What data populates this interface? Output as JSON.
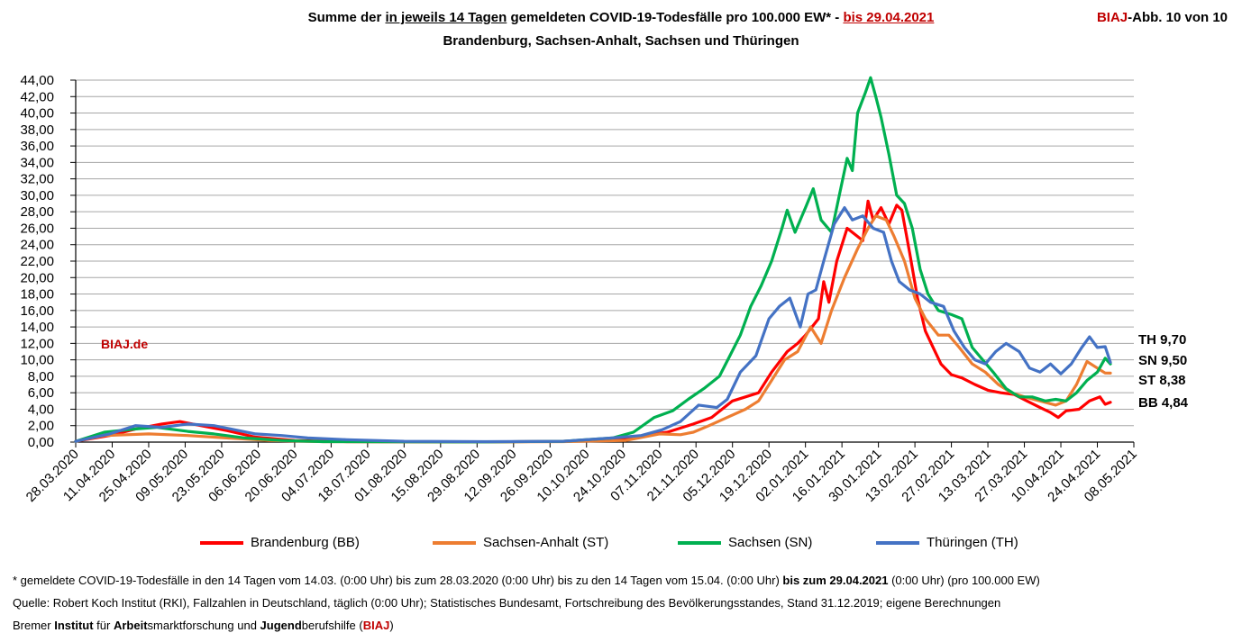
{
  "title": {
    "part1": "Summe der ",
    "part2": "in jeweils 14 Tagen",
    "part3": " gemeldeten COVID-19-Todesfälle pro 100.000 EW* - ",
    "part4": "bis 29.04.2021",
    "line2": "Brandenburg, Sachsen-Anhalt, Sachsen und Thüringen"
  },
  "figure_number": {
    "brand": "BIAJ",
    "rest": "-Abb. 10 von 10"
  },
  "brand_label": "BIAJ.de",
  "footnotes": {
    "line1_a": "* gemeldete COVID-19-Todesfälle in den 14 Tagen vom 14.03. (0:00 Uhr) bis zum 28.03.2020 (0:00 Uhr) bis zu den 14 Tagen vom 15.04. (0:00 Uhr) ",
    "line1_b": "bis zum 29.04.2021",
    "line1_c": " (0:00 Uhr) (pro 100.000 EW)",
    "line2": "Quelle: Robert Koch Institut (RKI), Fallzahlen in Deutschland, täglich (0:00 Uhr); Statistisches Bundesamt, Fortschreibung des Bevölkerungsstandes, Stand 31.12.2019; eigene Berechnungen",
    "line3_a": "Bremer ",
    "line3_b": "Institut",
    "line3_c": " für ",
    "line3_d": "Arbeit",
    "line3_e": "smarktforschung und ",
    "line3_f": "Jugend",
    "line3_g": "berufshilfe (",
    "line3_h": "BIAJ",
    "line3_i": ")"
  },
  "chart_data": {
    "type": "line",
    "x_type": "date",
    "x_ticks": [
      "28.03.2020",
      "11.04.2020",
      "25.04.2020",
      "09.05.2020",
      "23.05.2020",
      "06.06.2020",
      "20.06.2020",
      "04.07.2020",
      "18.07.2020",
      "01.08.2020",
      "15.08.2020",
      "29.08.2020",
      "12.09.2020",
      "26.09.2020",
      "10.10.2020",
      "24.10.2020",
      "07.11.2020",
      "21.11.2020",
      "05.12.2020",
      "19.12.2020",
      "02.01.2021",
      "16.01.2021",
      "30.01.2021",
      "13.02.2021",
      "27.02.2021",
      "13.03.2021",
      "27.03.2021",
      "10.04.2021",
      "24.04.2021",
      "08.05.2021"
    ],
    "xlim": [
      "28.03.2020",
      "08.05.2021"
    ],
    "ylim": [
      0,
      44
    ],
    "y_step": 2,
    "y_ticks": [
      "0,00",
      "2,00",
      "4,00",
      "6,00",
      "8,00",
      "10,00",
      "12,00",
      "14,00",
      "16,00",
      "18,00",
      "20,00",
      "22,00",
      "24,00",
      "26,00",
      "28,00",
      "30,00",
      "32,00",
      "34,00",
      "36,00",
      "38,00",
      "40,00",
      "42,00",
      "44,00"
    ],
    "grid": true,
    "legend_position": "bottom",
    "series": [
      {
        "name": "Brandenburg (BB)",
        "color": "#ff0000",
        "end_label": "BB 4,84",
        "points": [
          [
            "28.03.2020",
            0.1
          ],
          [
            "10.04.2020",
            0.8
          ],
          [
            "20.04.2020",
            1.6
          ],
          [
            "30.04.2020",
            2.2
          ],
          [
            "07.05.2020",
            2.5
          ],
          [
            "15.05.2020",
            2.0
          ],
          [
            "25.05.2020",
            1.4
          ],
          [
            "05.06.2020",
            0.6
          ],
          [
            "20.06.2020",
            0.2
          ],
          [
            "10.07.2020",
            0.05
          ],
          [
            "01.09.2020",
            0.02
          ],
          [
            "01.10.2020",
            0.1
          ],
          [
            "20.10.2020",
            0.3
          ],
          [
            "01.11.2020",
            0.8
          ],
          [
            "10.11.2020",
            1.2
          ],
          [
            "20.11.2020",
            2.2
          ],
          [
            "27.11.2020",
            3.0
          ],
          [
            "05.12.2020",
            5.0
          ],
          [
            "10.12.2020",
            5.5
          ],
          [
            "15.12.2020",
            6.0
          ],
          [
            "20.12.2020",
            8.5
          ],
          [
            "26.12.2020",
            11.0
          ],
          [
            "30.12.2020",
            12.0
          ],
          [
            "02.01.2021",
            13.0
          ],
          [
            "07.01.2021",
            15.0
          ],
          [
            "09.01.2021",
            19.5
          ],
          [
            "11.01.2021",
            17.0
          ],
          [
            "14.01.2021",
            22.0
          ],
          [
            "18.01.2021",
            26.0
          ],
          [
            "22.01.2021",
            25.0
          ],
          [
            "24.01.2021",
            24.5
          ],
          [
            "26.01.2021",
            29.3
          ],
          [
            "28.01.2021",
            27.0
          ],
          [
            "31.01.2021",
            28.5
          ],
          [
            "03.02.2021",
            26.5
          ],
          [
            "06.02.2021",
            28.8
          ],
          [
            "08.02.2021",
            28.2
          ],
          [
            "11.02.2021",
            23.0
          ],
          [
            "14.02.2021",
            17.5
          ],
          [
            "17.02.2021",
            13.5
          ],
          [
            "20.02.2021",
            11.5
          ],
          [
            "23.02.2021",
            9.5
          ],
          [
            "27.02.2021",
            8.2
          ],
          [
            "03.03.2021",
            7.8
          ],
          [
            "08.03.2021",
            7.0
          ],
          [
            "13.03.2021",
            6.3
          ],
          [
            "18.03.2021",
            6.0
          ],
          [
            "23.03.2021",
            5.8
          ],
          [
            "28.03.2021",
            5.0
          ],
          [
            "02.04.2021",
            4.2
          ],
          [
            "06.04.2021",
            3.6
          ],
          [
            "09.04.2021",
            3.0
          ],
          [
            "12.04.2021",
            3.8
          ],
          [
            "17.04.2021",
            4.0
          ],
          [
            "21.04.2021",
            5.0
          ],
          [
            "25.04.2021",
            5.5
          ],
          [
            "27.04.2021",
            4.6
          ],
          [
            "29.04.2021",
            4.84
          ]
        ]
      },
      {
        "name": "Sachsen-Anhalt (ST)",
        "color": "#ed7d31",
        "end_label": "ST 8,38",
        "points": [
          [
            "28.03.2020",
            0.1
          ],
          [
            "08.04.2020",
            0.8
          ],
          [
            "25.04.2020",
            1.0
          ],
          [
            "10.05.2020",
            0.8
          ],
          [
            "25.05.2020",
            0.5
          ],
          [
            "10.06.2020",
            0.2
          ],
          [
            "01.07.2020",
            0.05
          ],
          [
            "01.09.2020",
            0.02
          ],
          [
            "01.10.2020",
            0.05
          ],
          [
            "25.10.2020",
            0.2
          ],
          [
            "07.11.2020",
            1.0
          ],
          [
            "15.11.2020",
            0.9
          ],
          [
            "20.11.2020",
            1.2
          ],
          [
            "26.11.2020",
            2.0
          ],
          [
            "03.12.2020",
            3.0
          ],
          [
            "10.12.2020",
            4.0
          ],
          [
            "15.12.2020",
            5.0
          ],
          [
            "20.12.2020",
            7.5
          ],
          [
            "25.12.2020",
            10.0
          ],
          [
            "30.12.2020",
            11.0
          ],
          [
            "04.01.2021",
            14.0
          ],
          [
            "08.01.2021",
            12.0
          ],
          [
            "12.01.2021",
            16.0
          ],
          [
            "17.01.2021",
            20.0
          ],
          [
            "22.01.2021",
            23.5
          ],
          [
            "26.01.2021",
            26.0
          ],
          [
            "29.01.2021",
            27.5
          ],
          [
            "02.02.2021",
            27.0
          ],
          [
            "05.02.2021",
            25.0
          ],
          [
            "09.02.2021",
            22.0
          ],
          [
            "13.02.2021",
            17.5
          ],
          [
            "17.02.2021",
            15.0
          ],
          [
            "22.02.2021",
            13.0
          ],
          [
            "26.02.2021",
            13.0
          ],
          [
            "02.03.2021",
            11.5
          ],
          [
            "07.03.2021",
            9.5
          ],
          [
            "12.03.2021",
            8.5
          ],
          [
            "17.03.2021",
            7.0
          ],
          [
            "22.03.2021",
            6.0
          ],
          [
            "27.03.2021",
            5.5
          ],
          [
            "02.04.2021",
            5.0
          ],
          [
            "08.04.2021",
            4.5
          ],
          [
            "12.04.2021",
            5.0
          ],
          [
            "16.04.2021",
            7.0
          ],
          [
            "20.04.2021",
            9.8
          ],
          [
            "24.04.2021",
            9.0
          ],
          [
            "27.04.2021",
            8.4
          ],
          [
            "29.04.2021",
            8.38
          ]
        ]
      },
      {
        "name": "Sachsen (SN)",
        "color": "#00b050",
        "end_label": "SN 9,50",
        "points": [
          [
            "28.03.2020",
            0.1
          ],
          [
            "08.04.2020",
            1.2
          ],
          [
            "20.04.2020",
            1.6
          ],
          [
            "28.04.2020",
            1.8
          ],
          [
            "10.05.2020",
            1.3
          ],
          [
            "20.05.2020",
            1.0
          ],
          [
            "01.06.2020",
            0.5
          ],
          [
            "15.06.2020",
            0.2
          ],
          [
            "01.07.2020",
            0.05
          ],
          [
            "01.09.2020",
            0.02
          ],
          [
            "01.10.2020",
            0.1
          ],
          [
            "20.10.2020",
            0.5
          ],
          [
            "28.10.2020",
            1.2
          ],
          [
            "05.11.2020",
            3.0
          ],
          [
            "12.11.2020",
            3.8
          ],
          [
            "18.11.2020",
            5.2
          ],
          [
            "24.11.2020",
            6.5
          ],
          [
            "30.11.2020",
            8.0
          ],
          [
            "04.12.2020",
            10.5
          ],
          [
            "08.12.2020",
            13.0
          ],
          [
            "12.12.2020",
            16.5
          ],
          [
            "16.12.2020",
            19.0
          ],
          [
            "20.12.2020",
            22.0
          ],
          [
            "24.12.2020",
            26.0
          ],
          [
            "26.12.2020",
            28.2
          ],
          [
            "29.12.2020",
            25.5
          ],
          [
            "02.01.2021",
            28.5
          ],
          [
            "05.01.2021",
            30.8
          ],
          [
            "08.01.2021",
            27.0
          ],
          [
            "12.01.2021",
            25.5
          ],
          [
            "15.01.2021",
            30.0
          ],
          [
            "18.01.2021",
            34.5
          ],
          [
            "20.01.2021",
            33.0
          ],
          [
            "22.01.2021",
            40.0
          ],
          [
            "25.01.2021",
            42.5
          ],
          [
            "27.01.2021",
            44.3
          ],
          [
            "29.01.2021",
            42.0
          ],
          [
            "31.01.2021",
            39.5
          ],
          [
            "03.02.2021",
            35.0
          ],
          [
            "06.02.2021",
            30.0
          ],
          [
            "09.02.2021",
            29.0
          ],
          [
            "12.02.2021",
            26.0
          ],
          [
            "15.02.2021",
            21.0
          ],
          [
            "18.02.2021",
            18.0
          ],
          [
            "22.02.2021",
            16.0
          ],
          [
            "27.02.2021",
            15.5
          ],
          [
            "03.03.2021",
            15.0
          ],
          [
            "07.03.2021",
            11.5
          ],
          [
            "11.03.2021",
            10.0
          ],
          [
            "15.03.2021",
            8.5
          ],
          [
            "20.03.2021",
            6.5
          ],
          [
            "25.03.2021",
            5.5
          ],
          [
            "30.03.2021",
            5.5
          ],
          [
            "04.04.2021",
            5.0
          ],
          [
            "08.04.2021",
            5.2
          ],
          [
            "12.04.2021",
            5.0
          ],
          [
            "16.04.2021",
            6.0
          ],
          [
            "20.04.2021",
            7.5
          ],
          [
            "24.04.2021",
            8.5
          ],
          [
            "27.04.2021",
            10.2
          ],
          [
            "29.04.2021",
            9.5
          ]
        ]
      },
      {
        "name": "Thüringen (TH)",
        "color": "#4472c4",
        "end_label": "TH 9,70",
        "points": [
          [
            "28.03.2020",
            0.1
          ],
          [
            "10.04.2020",
            1.0
          ],
          [
            "20.04.2020",
            2.0
          ],
          [
            "30.04.2020",
            1.8
          ],
          [
            "10.05.2020",
            2.2
          ],
          [
            "20.05.2020",
            2.0
          ],
          [
            "28.05.2020",
            1.5
          ],
          [
            "05.06.2020",
            1.0
          ],
          [
            "15.06.2020",
            0.8
          ],
          [
            "25.06.2020",
            0.5
          ],
          [
            "10.07.2020",
            0.3
          ],
          [
            "01.08.2020",
            0.1
          ],
          [
            "01.09.2020",
            0.05
          ],
          [
            "01.10.2020",
            0.1
          ],
          [
            "20.10.2020",
            0.5
          ],
          [
            "31.10.2020",
            0.8
          ],
          [
            "08.11.2020",
            1.5
          ],
          [
            "15.11.2020",
            2.5
          ],
          [
            "22.11.2020",
            4.5
          ],
          [
            "29.11.2020",
            4.2
          ],
          [
            "03.12.2020",
            5.2
          ],
          [
            "08.12.2020",
            8.5
          ],
          [
            "14.12.2020",
            10.5
          ],
          [
            "19.12.2020",
            15.0
          ],
          [
            "23.12.2020",
            16.5
          ],
          [
            "27.12.2020",
            17.5
          ],
          [
            "31.12.2020",
            14.0
          ],
          [
            "03.01.2021",
            18.0
          ],
          [
            "06.01.2021",
            18.5
          ],
          [
            "09.01.2021",
            22.0
          ],
          [
            "13.01.2021",
            26.5
          ],
          [
            "17.01.2021",
            28.5
          ],
          [
            "20.01.2021",
            27.0
          ],
          [
            "24.01.2021",
            27.5
          ],
          [
            "28.01.2021",
            26.0
          ],
          [
            "01.02.2021",
            25.5
          ],
          [
            "04.02.2021",
            22.0
          ],
          [
            "07.02.2021",
            19.5
          ],
          [
            "11.02.2021",
            18.5
          ],
          [
            "15.02.2021",
            18.0
          ],
          [
            "19.02.2021",
            17.0
          ],
          [
            "24.02.2021",
            16.5
          ],
          [
            "28.02.2021",
            13.5
          ],
          [
            "04.03.2021",
            11.5
          ],
          [
            "08.03.2021",
            10.0
          ],
          [
            "12.03.2021",
            9.5
          ],
          [
            "16.03.2021",
            11.0
          ],
          [
            "20.03.2021",
            12.0
          ],
          [
            "25.03.2021",
            11.0
          ],
          [
            "29.03.2021",
            9.0
          ],
          [
            "02.04.2021",
            8.5
          ],
          [
            "06.04.2021",
            9.5
          ],
          [
            "10.04.2021",
            8.3
          ],
          [
            "14.04.2021",
            9.5
          ],
          [
            "18.04.2021",
            11.5
          ],
          [
            "21.04.2021",
            12.8
          ],
          [
            "24.04.2021",
            11.5
          ],
          [
            "27.04.2021",
            11.6
          ],
          [
            "29.04.2021",
            9.7
          ]
        ]
      }
    ]
  }
}
